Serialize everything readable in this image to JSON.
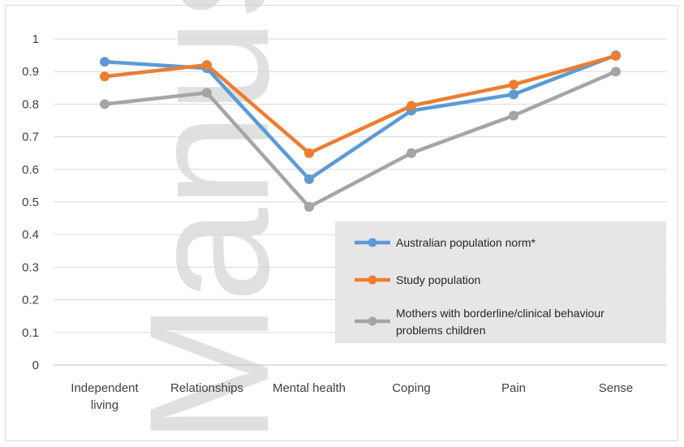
{
  "chart_data": {
    "type": "line",
    "categories": [
      "Independent living",
      "Relationships",
      "Mental health",
      "Coping",
      "Pain",
      "Sense"
    ],
    "category_lines": [
      [
        "Independent",
        "living"
      ],
      [
        "Relationships"
      ],
      [
        "Mental health"
      ],
      [
        "Coping"
      ],
      [
        "Pain"
      ],
      [
        "Sense"
      ]
    ],
    "ylim": [
      0,
      1
    ],
    "yticks": [
      "0",
      "0.1",
      "0.2",
      "0.3",
      "0.4",
      "0.5",
      "0.6",
      "0.7",
      "0.8",
      "0.9",
      "1"
    ],
    "grid": true,
    "legend_position": "bottom-right",
    "series": [
      {
        "name": "Australian population norm*",
        "color": "#5b9bd5",
        "values": [
          0.93,
          0.91,
          0.57,
          0.78,
          0.83,
          0.95
        ]
      },
      {
        "name": "Study population",
        "color": "#ed7d31",
        "values": [
          0.885,
          0.92,
          0.65,
          0.795,
          0.86,
          0.948
        ]
      },
      {
        "name": "Mothers with borderline/clinical behaviour problems children",
        "name_lines": [
          "Mothers with borderline/clinical behaviour",
          "problems children"
        ],
        "color": "#a5a5a5",
        "values": [
          0.8,
          0.835,
          0.485,
          0.65,
          0.765,
          0.9
        ]
      }
    ]
  },
  "watermark": "Manuscript"
}
